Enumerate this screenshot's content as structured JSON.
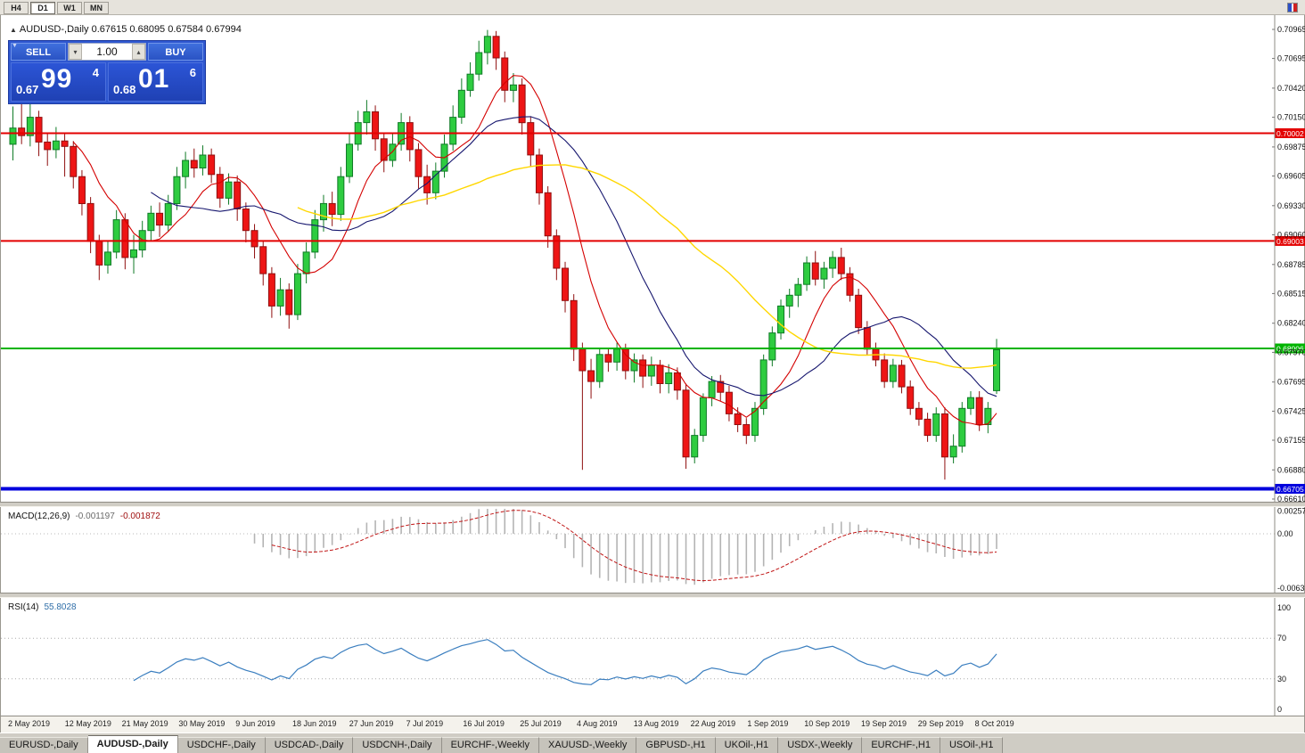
{
  "toolbar": {
    "timeframes": [
      {
        "label": "H4",
        "active": false
      },
      {
        "label": "D1",
        "active": true
      },
      {
        "label": "W1",
        "active": false
      },
      {
        "label": "MN",
        "active": false
      }
    ]
  },
  "chart": {
    "title": "AUDUSD-,Daily  0.67615 0.68095 0.67584 0.67994",
    "trade_panel": {
      "sell_label": "SELL",
      "buy_label": "BUY",
      "volume": "1.00",
      "sell_price": {
        "big_prefix": "0.67",
        "big": "99",
        "sup": "4"
      },
      "buy_price": {
        "big_prefix": "0.68",
        "big": "01",
        "sup": "6"
      }
    },
    "levels": [
      {
        "value": 0.70002,
        "label": "0.70002",
        "color": "#e30000",
        "width": 2
      },
      {
        "value": 0.69003,
        "label": "0.69003",
        "color": "#e30000",
        "width": 2
      },
      {
        "value": 0.68006,
        "label": "0.68006",
        "color": "#00b400",
        "width": 2
      },
      {
        "value": 0.66705,
        "label": "0.66705",
        "color": "#0000dd",
        "width": 4
      }
    ],
    "y_ticks": [
      "0.70965",
      "0.70695",
      "0.70420",
      "0.70150",
      "0.69875",
      "0.69605",
      "0.69330",
      "0.69060",
      "0.68785",
      "0.68515",
      "0.68240",
      "0.67970",
      "0.67695",
      "0.67425",
      "0.67155",
      "0.66880",
      "0.66610"
    ]
  },
  "colors": {
    "up": "#2ecc40",
    "upEdge": "#0f7a26",
    "down": "#ee1515",
    "downEdge": "#8f0f0f",
    "ma_fast": "#d40000",
    "ma_mid": "#16166e",
    "ma_slow": "#ffd700",
    "macd_hist": "#b4b4b4",
    "macd_signal": "#c01515",
    "rsi_line": "#3a7ebf"
  },
  "chart_data": {
    "type": "candlestick",
    "symbol": "AUDUSD-",
    "timeframe": "Daily",
    "ylim": [
      0.66585,
      0.71097
    ],
    "x_labels": [
      "2 May 2019",
      "12 May 2019",
      "21 May 2019",
      "30 May 2019",
      "9 Jun 2019",
      "18 Jun 2019",
      "27 Jun 2019",
      "7 Jul 2019",
      "16 Jul 2019",
      "25 Jul 2019",
      "4 Aug 2019",
      "13 Aug 2019",
      "22 Aug 2019",
      "1 Sep 2019",
      "10 Sep 2019",
      "19 Sep 2019",
      "29 Sep 2019",
      "8 Oct 2019"
    ],
    "overlays": [
      {
        "name": "ma-fast",
        "period": 8
      },
      {
        "name": "ma-mid",
        "period": 17
      },
      {
        "name": "ma-slow",
        "period": 34
      }
    ],
    "ohlc": [
      [
        0.699,
        0.7025,
        0.6975,
        0.7005
      ],
      [
        0.7005,
        0.704,
        0.699,
        0.6998
      ],
      [
        0.6998,
        0.7036,
        0.6988,
        0.7015
      ],
      [
        0.7015,
        0.7021,
        0.6979,
        0.6992
      ],
      [
        0.6992,
        0.7001,
        0.697,
        0.6985
      ],
      [
        0.6985,
        0.7006,
        0.6977,
        0.6993
      ],
      [
        0.6993,
        0.7,
        0.696,
        0.6988
      ],
      [
        0.6988,
        0.6993,
        0.6949,
        0.696
      ],
      [
        0.696,
        0.6966,
        0.6924,
        0.6935
      ],
      [
        0.6935,
        0.6941,
        0.6889,
        0.69
      ],
      [
        0.69,
        0.6906,
        0.6864,
        0.6878
      ],
      [
        0.6878,
        0.6901,
        0.687,
        0.689
      ],
      [
        0.689,
        0.6929,
        0.6884,
        0.692
      ],
      [
        0.692,
        0.6926,
        0.6874,
        0.6885
      ],
      [
        0.6885,
        0.6906,
        0.687,
        0.6892
      ],
      [
        0.6892,
        0.6919,
        0.6885,
        0.691
      ],
      [
        0.691,
        0.6933,
        0.69,
        0.6926
      ],
      [
        0.6926,
        0.6936,
        0.6904,
        0.6915
      ],
      [
        0.6915,
        0.6943,
        0.6909,
        0.6935
      ],
      [
        0.6935,
        0.6969,
        0.6929,
        0.696
      ],
      [
        0.696,
        0.6983,
        0.6949,
        0.6975
      ],
      [
        0.6975,
        0.6986,
        0.6959,
        0.6968
      ],
      [
        0.6968,
        0.6989,
        0.6961,
        0.698
      ],
      [
        0.698,
        0.6986,
        0.6954,
        0.6962
      ],
      [
        0.6962,
        0.6969,
        0.6931,
        0.694
      ],
      [
        0.694,
        0.6963,
        0.6934,
        0.6955
      ],
      [
        0.6955,
        0.6961,
        0.6919,
        0.693
      ],
      [
        0.693,
        0.6936,
        0.6899,
        0.691
      ],
      [
        0.691,
        0.6916,
        0.6884,
        0.6895
      ],
      [
        0.6895,
        0.6901,
        0.6859,
        0.687
      ],
      [
        0.687,
        0.6876,
        0.6829,
        0.684
      ],
      [
        0.684,
        0.6866,
        0.6831,
        0.6855
      ],
      [
        0.6855,
        0.6861,
        0.6819,
        0.6832
      ],
      [
        0.6832,
        0.6879,
        0.6827,
        0.687
      ],
      [
        0.687,
        0.6899,
        0.6861,
        0.689
      ],
      [
        0.689,
        0.6929,
        0.6884,
        0.692
      ],
      [
        0.692,
        0.6943,
        0.6909,
        0.6935
      ],
      [
        0.6935,
        0.6946,
        0.6914,
        0.6925
      ],
      [
        0.6925,
        0.6969,
        0.6919,
        0.696
      ],
      [
        0.696,
        0.7001,
        0.6954,
        0.699
      ],
      [
        0.699,
        0.7021,
        0.6984,
        0.701
      ],
      [
        0.701,
        0.7031,
        0.6999,
        0.702
      ],
      [
        0.702,
        0.7026,
        0.6984,
        0.6995
      ],
      [
        0.6995,
        0.7001,
        0.6964,
        0.6975
      ],
      [
        0.6975,
        0.7001,
        0.6969,
        0.699
      ],
      [
        0.699,
        0.7019,
        0.6984,
        0.701
      ],
      [
        0.701,
        0.7016,
        0.6974,
        0.6985
      ],
      [
        0.6985,
        0.6991,
        0.6949,
        0.696
      ],
      [
        0.696,
        0.6971,
        0.6934,
        0.6945
      ],
      [
        0.6945,
        0.6973,
        0.6939,
        0.6965
      ],
      [
        0.6965,
        0.6999,
        0.6959,
        0.699
      ],
      [
        0.699,
        0.7026,
        0.6984,
        0.7015
      ],
      [
        0.7015,
        0.7051,
        0.7009,
        0.704
      ],
      [
        0.704,
        0.7066,
        0.7034,
        0.7055
      ],
      [
        0.7055,
        0.7086,
        0.7049,
        0.7075
      ],
      [
        0.7075,
        0.7096,
        0.7064,
        0.709
      ],
      [
        0.709,
        0.7095,
        0.7059,
        0.707
      ],
      [
        0.707,
        0.7076,
        0.7029,
        0.704
      ],
      [
        0.704,
        0.7056,
        0.7029,
        0.7045
      ],
      [
        0.7045,
        0.7051,
        0.6999,
        0.701
      ],
      [
        0.701,
        0.7016,
        0.6969,
        0.698
      ],
      [
        0.698,
        0.6986,
        0.6934,
        0.6945
      ],
      [
        0.6945,
        0.6951,
        0.6894,
        0.6905
      ],
      [
        0.6905,
        0.6911,
        0.6864,
        0.6875
      ],
      [
        0.6875,
        0.6881,
        0.6834,
        0.6845
      ],
      [
        0.6845,
        0.6851,
        0.6789,
        0.68
      ],
      [
        0.68,
        0.6806,
        0.6688,
        0.678
      ],
      [
        0.678,
        0.6791,
        0.6754,
        0.677
      ],
      [
        0.677,
        0.6801,
        0.6764,
        0.6795
      ],
      [
        0.6795,
        0.6801,
        0.6779,
        0.6788
      ],
      [
        0.6788,
        0.6806,
        0.678,
        0.68
      ],
      [
        0.68,
        0.6805,
        0.6772,
        0.678
      ],
      [
        0.678,
        0.6796,
        0.6769,
        0.679
      ],
      [
        0.679,
        0.6795,
        0.6764,
        0.6775
      ],
      [
        0.6775,
        0.6793,
        0.6766,
        0.6785
      ],
      [
        0.6785,
        0.679,
        0.6759,
        0.6768
      ],
      [
        0.6768,
        0.6786,
        0.6759,
        0.6778
      ],
      [
        0.6778,
        0.6783,
        0.6753,
        0.6762
      ],
      [
        0.6762,
        0.6768,
        0.6689,
        0.67
      ],
      [
        0.67,
        0.6726,
        0.6694,
        0.672
      ],
      [
        0.672,
        0.6759,
        0.6714,
        0.6755
      ],
      [
        0.6755,
        0.6775,
        0.6747,
        0.677
      ],
      [
        0.677,
        0.6776,
        0.6752,
        0.676
      ],
      [
        0.676,
        0.6766,
        0.6733,
        0.674
      ],
      [
        0.674,
        0.6746,
        0.6723,
        0.673
      ],
      [
        0.673,
        0.6736,
        0.6712,
        0.672
      ],
      [
        0.672,
        0.6751,
        0.6714,
        0.6745
      ],
      [
        0.6745,
        0.6795,
        0.6739,
        0.679
      ],
      [
        0.679,
        0.6821,
        0.6784,
        0.6815
      ],
      [
        0.6815,
        0.6846,
        0.6809,
        0.684
      ],
      [
        0.684,
        0.6856,
        0.6829,
        0.685
      ],
      [
        0.685,
        0.6866,
        0.6839,
        0.686
      ],
      [
        0.686,
        0.6886,
        0.6854,
        0.688
      ],
      [
        0.688,
        0.6891,
        0.6859,
        0.6865
      ],
      [
        0.6865,
        0.6881,
        0.6856,
        0.6875
      ],
      [
        0.6875,
        0.6891,
        0.6866,
        0.6885
      ],
      [
        0.6885,
        0.6894,
        0.6864,
        0.687
      ],
      [
        0.687,
        0.6876,
        0.6844,
        0.685
      ],
      [
        0.685,
        0.6856,
        0.6814,
        0.682
      ],
      [
        0.682,
        0.6826,
        0.6794,
        0.68
      ],
      [
        0.68,
        0.6806,
        0.6784,
        0.679
      ],
      [
        0.679,
        0.6796,
        0.6764,
        0.677
      ],
      [
        0.677,
        0.6791,
        0.6764,
        0.6785
      ],
      [
        0.6785,
        0.679,
        0.6759,
        0.6765
      ],
      [
        0.6765,
        0.6771,
        0.6739,
        0.6745
      ],
      [
        0.6745,
        0.6751,
        0.6729,
        0.6735
      ],
      [
        0.6735,
        0.6741,
        0.6714,
        0.672
      ],
      [
        0.672,
        0.6746,
        0.6714,
        0.674
      ],
      [
        0.674,
        0.6746,
        0.6679,
        0.67
      ],
      [
        0.67,
        0.6721,
        0.6694,
        0.671
      ],
      [
        0.671,
        0.6751,
        0.6704,
        0.6745
      ],
      [
        0.6745,
        0.6761,
        0.6739,
        0.6755
      ],
      [
        0.6755,
        0.6761,
        0.6724,
        0.673
      ],
      [
        0.673,
        0.6751,
        0.6722,
        0.6745
      ],
      [
        0.67615,
        0.68095,
        0.67584,
        0.67994
      ]
    ],
    "macd": {
      "label": "MACD(12,26,9)",
      "value1": "-0.001197",
      "value2": "-0.001872",
      "params": [
        12,
        26,
        9
      ],
      "ylim": [
        -0.0066,
        0.003
      ],
      "y_ticks": [
        {
          "v": 0.002574,
          "label": "0.002574"
        },
        {
          "v": 0,
          "label": "0.00"
        },
        {
          "v": -0.006326,
          "label": "-0.006326"
        }
      ]
    },
    "rsi": {
      "label": "RSI(14)",
      "value": "55.8028",
      "period": 14,
      "levels": [
        70,
        30
      ],
      "ylim": [
        0,
        100
      ],
      "y_ticks": [
        {
          "v": 100,
          "label": "100"
        },
        {
          "v": 70,
          "label": "70"
        },
        {
          "v": 30,
          "label": "30"
        },
        {
          "v": 0,
          "label": "0"
        }
      ]
    }
  },
  "tabs": [
    {
      "label": "EURUSD-,Daily",
      "active": false
    },
    {
      "label": "AUDUSD-,Daily",
      "active": true
    },
    {
      "label": "USDCHF-,Daily",
      "active": false
    },
    {
      "label": "USDCAD-,Daily",
      "active": false
    },
    {
      "label": "USDCNH-,Daily",
      "active": false
    },
    {
      "label": "EURCHF-,Weekly",
      "active": false
    },
    {
      "label": "XAUUSD-,Weekly",
      "active": false
    },
    {
      "label": "GBPUSD-,H1",
      "active": false
    },
    {
      "label": "UKOil-,H1",
      "active": false
    },
    {
      "label": "USDX-,Weekly",
      "active": false
    },
    {
      "label": "EURCHF-,H1",
      "active": false
    },
    {
      "label": "USOil-,H1",
      "active": false
    }
  ]
}
